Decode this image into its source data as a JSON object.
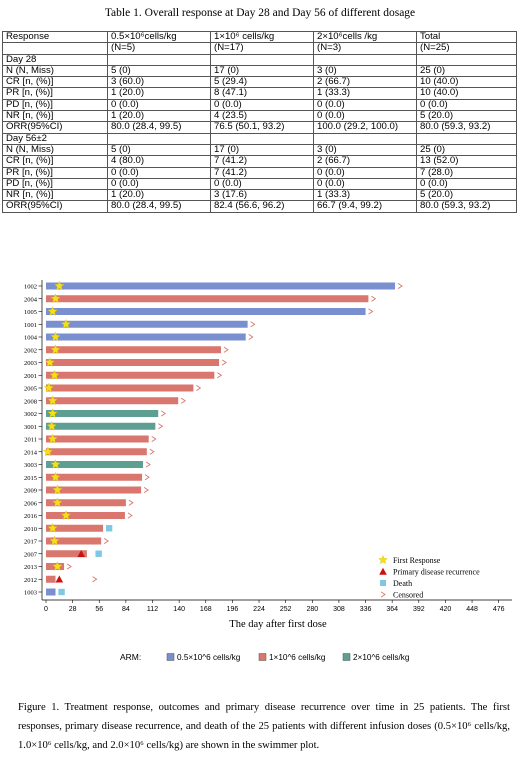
{
  "table": {
    "title": "Table 1. Overall response at Day 28 and Day 56 of different dosage",
    "header": {
      "col0": "Response",
      "col1_line1": "0.5×10⁶cells/kg",
      "col1_line2": "(N=5)",
      "col2_line1": "1×10⁶ cells/kg",
      "col2_line2": "(N=17)",
      "col3_line1": "2×10⁶cells /kg",
      "col3_line2": "(N=3)",
      "col4_line1": "Total",
      "col4_line2": "(N=25)"
    },
    "day28": {
      "label": "Day 28",
      "rows": [
        [
          "N (N, Miss)",
          "5 (0)",
          "17 (0)",
          "3 (0)",
          "25 (0)"
        ],
        [
          "CR [n, (%)]",
          "3 (60.0)",
          "5 (29.4)",
          "2 (66.7)",
          "10 (40.0)"
        ],
        [
          "PR [n, (%)]",
          "1 (20.0)",
          "8 (47.1)",
          "1 (33.3)",
          "10 (40.0)"
        ],
        [
          "PD [n, (%)]",
          "0 (0.0)",
          "0 (0.0)",
          "0 (0.0)",
          "0 (0.0)"
        ],
        [
          "NR [n, (%)]",
          "1 (20.0)",
          "4 (23.5)",
          "0 (0.0)",
          "5 (20.0)"
        ],
        [
          "ORR(95%CI)",
          "80.0 (28.4, 99.5)",
          "76.5 (50.1, 93.2)",
          "100.0 (29.2, 100.0)",
          "80.0 (59.3, 93.2)"
        ]
      ]
    },
    "day56": {
      "label": "Day 56±2",
      "rows": [
        [
          "N (N, Miss)",
          "5 (0)",
          "17 (0)",
          "3 (0)",
          "25 (0)"
        ],
        [
          "CR [n, (%)]",
          "4 (80.0)",
          "7 (41.2)",
          "2 (66.7)",
          "13 (52.0)"
        ],
        [
          "PR [n, (%)]",
          "0 (0.0)",
          "7 (41.2)",
          "0 (0.0)",
          "7 (28.0)"
        ],
        [
          "PD [n, (%)]",
          "0 (0.0)",
          "0 (0.0)",
          "0 (0.0)",
          "0 (0.0)"
        ],
        [
          "NR [n, (%)]",
          "1 (20.0)",
          "3 (17.6)",
          "1 (33.3)",
          "5 (20.0)"
        ],
        [
          "ORR(95%CI)",
          "80.0 (28.4, 99.5)",
          "82.4 (56.6, 96.2)",
          "66.7 (9.4, 99.2)",
          "80.0 (59.3, 93.2)"
        ]
      ]
    }
  },
  "chart_data": {
    "type": "bar",
    "orientation": "horizontal",
    "xlabel": "The day after first dose",
    "xlim": [
      0,
      490
    ],
    "xticks": [
      0,
      28,
      56,
      84,
      112,
      140,
      168,
      196,
      224,
      252,
      280,
      308,
      336,
      364,
      392,
      420,
      448,
      476
    ],
    "grid": false,
    "legend_title": "ARM:",
    "legend_position": "bottom",
    "series_colors": {
      "0.5": "#7a8fcf",
      "1": "#d9766d",
      "2": "#5e9f93"
    },
    "arm_labels": {
      "0.5": "0.5×10^6 cells/kg",
      "1": "1×10^6 cells/kg",
      "2": "2×10^6 cells/kg"
    },
    "event_legend": {
      "first_response": "First Response",
      "recurrence": "Primary disease recurrence",
      "death": "Death",
      "censored": "Censored"
    },
    "event_colors": {
      "first_response": "#f4e01a",
      "recurrence": "#cc1111",
      "death": "#7ec8e3",
      "censored": "#d9766d"
    },
    "patients": [
      {
        "id": "1002",
        "arm": "0.5",
        "duration": 367,
        "first_response": 14,
        "censored": true
      },
      {
        "id": "2004",
        "arm": "1",
        "duration": 339,
        "first_response": 10,
        "censored": true
      },
      {
        "id": "1005",
        "arm": "0.5",
        "duration": 336,
        "first_response": 7,
        "censored": true
      },
      {
        "id": "1001",
        "arm": "0.5",
        "duration": 212,
        "first_response": 21,
        "censored": true
      },
      {
        "id": "1004",
        "arm": "0.5",
        "duration": 210,
        "first_response": 10,
        "censored": true
      },
      {
        "id": "2002",
        "arm": "1",
        "duration": 184,
        "first_response": 10,
        "censored": true
      },
      {
        "id": "2003",
        "arm": "1",
        "duration": 182,
        "first_response": 4,
        "censored": true
      },
      {
        "id": "2001",
        "arm": "1",
        "duration": 177,
        "first_response": 9,
        "censored": true
      },
      {
        "id": "2005",
        "arm": "1",
        "duration": 155,
        "first_response": 3,
        "censored": true
      },
      {
        "id": "2008",
        "arm": "1",
        "duration": 139,
        "first_response": 7,
        "censored": true
      },
      {
        "id": "3002",
        "arm": "2",
        "duration": 118,
        "first_response": 7,
        "censored": true
      },
      {
        "id": "3001",
        "arm": "2",
        "duration": 115,
        "first_response": 6,
        "censored": true
      },
      {
        "id": "2011",
        "arm": "1",
        "duration": 108,
        "first_response": 7,
        "censored": true
      },
      {
        "id": "2014",
        "arm": "1",
        "duration": 106,
        "first_response": 2,
        "censored": true
      },
      {
        "id": "3003",
        "arm": "2",
        "duration": 102,
        "first_response": 10,
        "censored": true
      },
      {
        "id": "2015",
        "arm": "1",
        "duration": 101,
        "first_response": 10,
        "censored": true
      },
      {
        "id": "2009",
        "arm": "1",
        "duration": 100,
        "first_response": 12,
        "censored": true
      },
      {
        "id": "2006",
        "arm": "1",
        "duration": 84,
        "first_response": 12,
        "censored": true
      },
      {
        "id": "2016",
        "arm": "1",
        "duration": 83,
        "first_response": 21,
        "censored": true
      },
      {
        "id": "2010",
        "arm": "1",
        "duration": 60,
        "first_response": 7,
        "death": 63
      },
      {
        "id": "2017",
        "arm": "1",
        "duration": 58,
        "first_response": 9,
        "censored": true
      },
      {
        "id": "2007",
        "arm": "1",
        "duration": 43,
        "recurrence": 37,
        "death": 52
      },
      {
        "id": "2013",
        "arm": "1",
        "duration": 19,
        "first_response": 12,
        "censored": true
      },
      {
        "id": "2012",
        "arm": "1",
        "duration": 10,
        "recurrence": 14,
        "censored": true,
        "censor_at": 49
      },
      {
        "id": "1003",
        "arm": "0.5",
        "duration": 10,
        "death": 13
      }
    ]
  },
  "figure_caption": "Figure 1. Treatment response, outcomes and primary disease recurrence over time in 25 patients. The first responses, primary disease recurrence, and death of the 25 patients with different infusion doses (0.5×10⁶ cells/kg, 1.0×10⁶ cells/kg, and 2.0×10⁶ cells/kg) are shown in the swimmer plot."
}
